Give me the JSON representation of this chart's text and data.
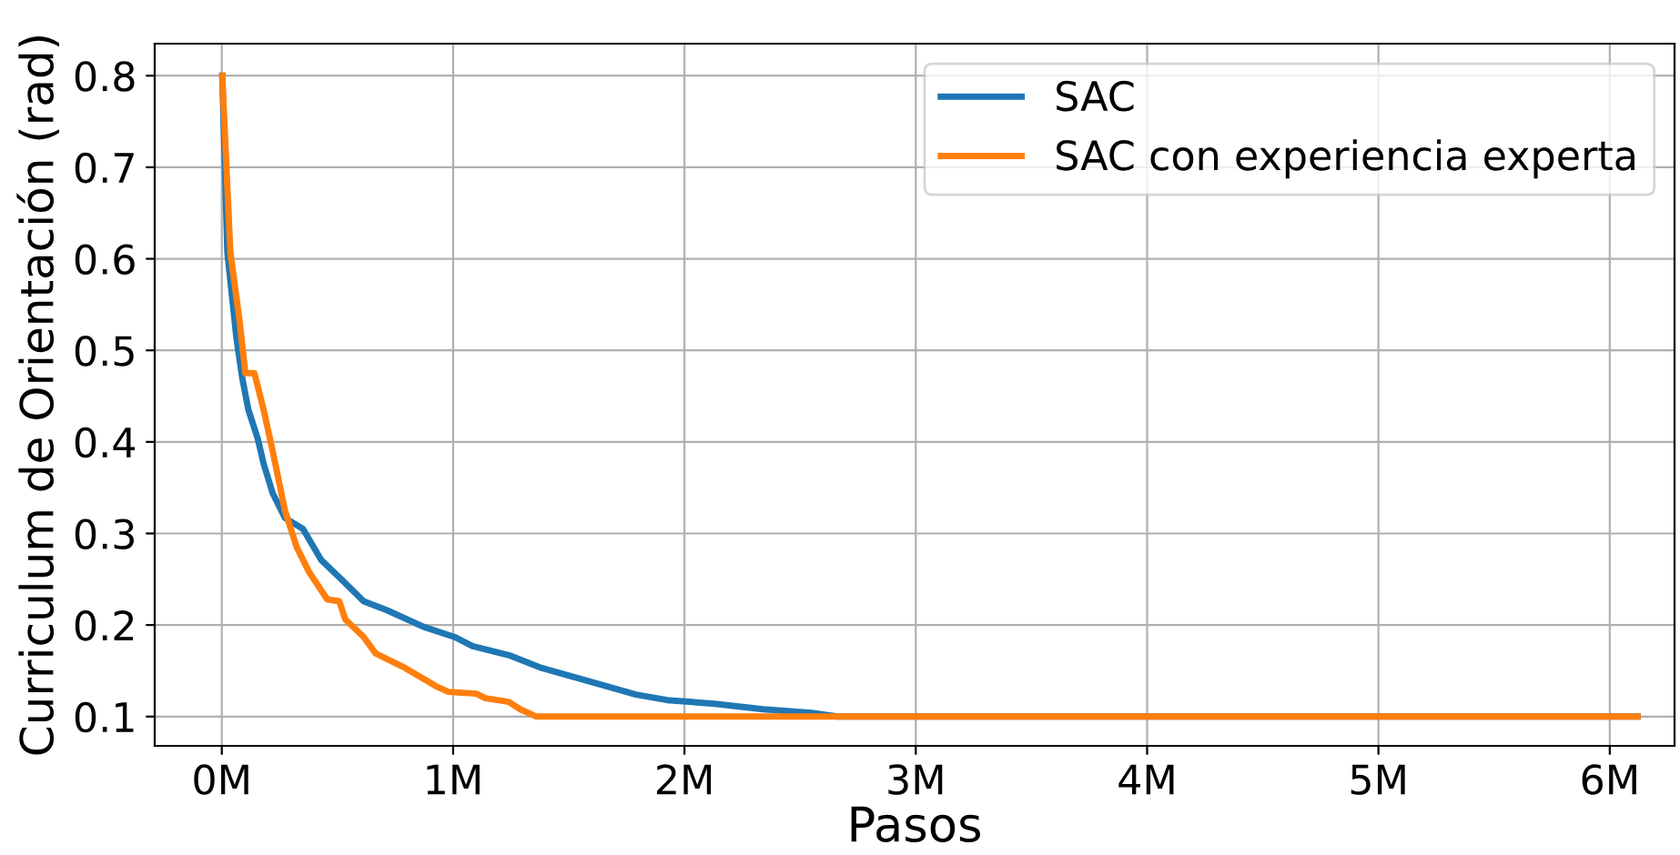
{
  "chart_data": {
    "type": "line",
    "xlabel": "Pasos",
    "ylabel": "Curriculum de Orientación (rad)",
    "xlim": [
      -0.29,
      6.28
    ],
    "ylim": [
      0.068,
      0.835
    ],
    "xticks": [
      {
        "value": 0,
        "label": "0M"
      },
      {
        "value": 1,
        "label": "1M"
      },
      {
        "value": 2,
        "label": "2M"
      },
      {
        "value": 3,
        "label": "3M"
      },
      {
        "value": 4,
        "label": "4M"
      },
      {
        "value": 5,
        "label": "5M"
      },
      {
        "value": 6,
        "label": "6M"
      }
    ],
    "yticks": [
      0.1,
      0.2,
      0.3,
      0.4,
      0.5,
      0.6,
      0.7,
      0.8
    ],
    "grid": true,
    "legend": "top right",
    "line_style": "solid",
    "series": [
      {
        "name": "SAC",
        "color": "#1f77b4",
        "x": [
          0.002,
          0.024,
          0.063,
          0.089,
          0.115,
          0.155,
          0.181,
          0.22,
          0.273,
          0.351,
          0.43,
          0.508,
          0.613,
          0.715,
          0.872,
          1.005,
          1.084,
          1.241,
          1.383,
          1.61,
          1.79,
          1.925,
          2.13,
          2.34,
          2.55,
          2.66,
          6.12
        ],
        "values": [
          0.8,
          0.607,
          0.514,
          0.469,
          0.435,
          0.404,
          0.376,
          0.344,
          0.317,
          0.305,
          0.271,
          0.252,
          0.226,
          0.216,
          0.198,
          0.187,
          0.177,
          0.167,
          0.153,
          0.137,
          0.124,
          0.118,
          0.114,
          0.108,
          0.104,
          0.1,
          0.1
        ]
      },
      {
        "name": "SAC con experiencia experta",
        "color": "#ff7f0e",
        "x": [
          0.002,
          0.037,
          0.076,
          0.102,
          0.141,
          0.181,
          0.22,
          0.273,
          0.324,
          0.377,
          0.456,
          0.508,
          0.534,
          0.613,
          0.665,
          0.793,
          0.927,
          0.98,
          1.1,
          1.14,
          1.24,
          1.29,
          1.36,
          6.12
        ],
        "values": [
          0.8,
          0.607,
          0.534,
          0.475,
          0.475,
          0.435,
          0.39,
          0.325,
          0.285,
          0.258,
          0.228,
          0.226,
          0.206,
          0.187,
          0.169,
          0.153,
          0.133,
          0.127,
          0.125,
          0.12,
          0.116,
          0.108,
          0.1,
          0.1
        ]
      }
    ]
  }
}
